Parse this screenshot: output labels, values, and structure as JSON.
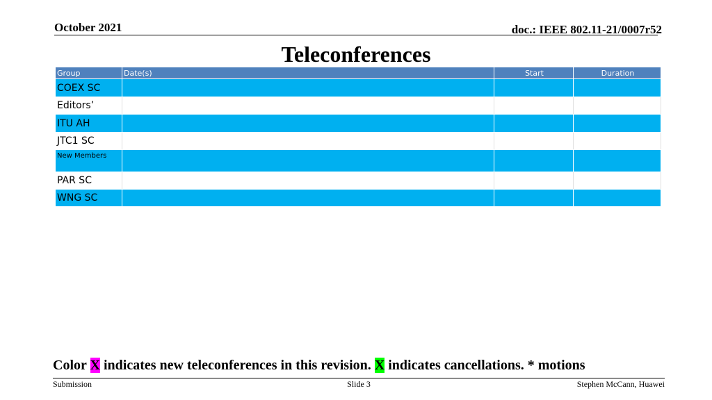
{
  "header": {
    "date": "October 2021",
    "doc": "doc.: IEEE 802.11-21/0007r52"
  },
  "title": "Teleconferences",
  "table": {
    "columns": [
      "Group",
      "Date(s)",
      "Start",
      "Duration"
    ],
    "rows": [
      "COEX SC",
      "Editors’",
      "ITU AH",
      "JTC1 SC",
      "New Members",
      "PAR SC",
      "WNG SC"
    ]
  },
  "note": {
    "parts": [
      "Color",
      "X",
      "indicates new teleconferences in this revision.",
      "X",
      "indicates cancellations. * motions"
    ]
  },
  "footer": {
    "left": "Submission",
    "center": "Slide 3",
    "right": "Stephen McCann, Huawei"
  }
}
